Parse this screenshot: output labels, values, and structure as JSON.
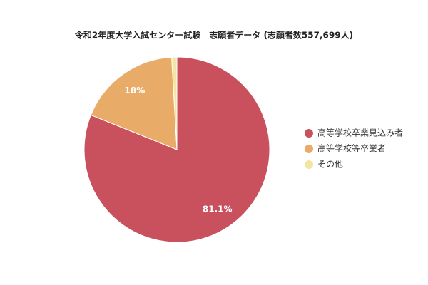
{
  "chart_data": {
    "type": "pie",
    "title": "令和2年度大学入試センター試験　志願者データ (志願者数557,699人)",
    "categories": [
      "高等学校卒業見込み者",
      "高等学校等卒業者",
      "その他"
    ],
    "values": [
      81.1,
      18,
      0.9
    ],
    "value_labels": [
      "81.1%",
      "18%",
      null
    ],
    "colors": [
      "#c9515e",
      "#e8ac68",
      "#f3e6a5"
    ],
    "legend": "right"
  }
}
